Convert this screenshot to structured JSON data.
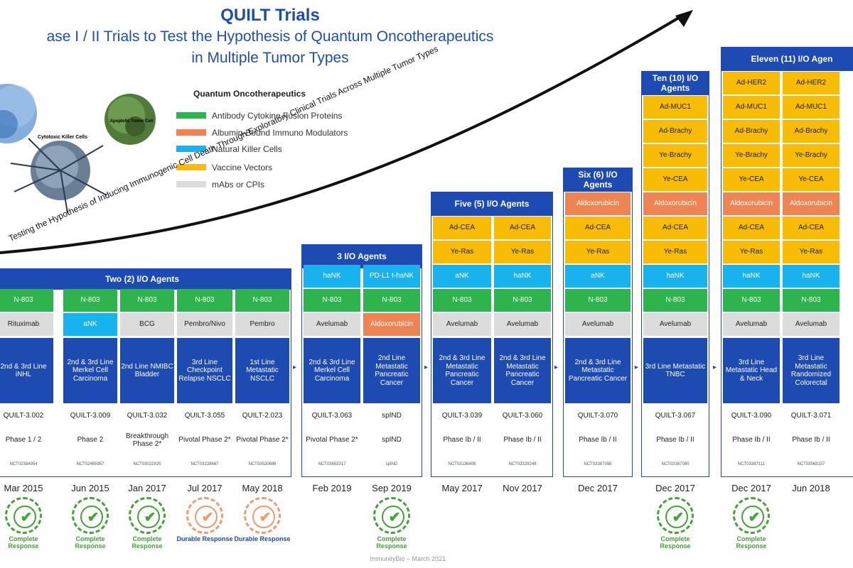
{
  "title": {
    "line1": "QUILT Trials",
    "line2": "ase I / II Trials to Test the Hypothesis of Quantum Oncotherapeutics",
    "line3": "in Multiple Tumor Types"
  },
  "legend": {
    "title": "Quantum Oncotherapeutics",
    "items": [
      {
        "label": "Antibody Cytokine Fusion Proteins",
        "color": "#2eb44c"
      },
      {
        "label": "Albumin-Bound Immuno Modulators",
        "color": "#ee8353"
      },
      {
        "label": "Natural Killer Cells",
        "color": "#18b2ee"
      },
      {
        "label": "Vaccine Vectors",
        "color": "#f8bc05"
      },
      {
        "label": "mAbs or CPIs",
        "color": "#dcdcdc"
      }
    ]
  },
  "arrow_label": "Testing the Hypothesis of Inducing Immunogenic Cell Death Through Exploratory Clinical Trials Across Multiple Tumor Types",
  "cell_images": {
    "left": "",
    "middle": "Cytotoxic Killer Cells",
    "right": "Apoptotic Tumor Cell"
  },
  "groups": {
    "two": "Two (2) I/O Agents",
    "three": "3 I/O Agents",
    "five": "Five (5) I/O Agents",
    "six": "Six (6) I/O Agents",
    "ten": "Ten (10) I/O Agents",
    "eleven": "Eleven (11) I/O Agen"
  },
  "columns": [
    {
      "agents": [
        "N-803",
        "Rituximab"
      ],
      "indication": "2nd & 3rd Line iNHL",
      "trial": "QUILT-3.002",
      "phase": "Phase 1 / 2",
      "nct": "NCT02384954",
      "date": "Mar 2015",
      "response": "Complete Response"
    },
    {
      "agents": [
        "N-803",
        "aNK"
      ],
      "indication": "2nd & 3rd Line Merkel Cell Carcinoma",
      "trial": "QUILT-3.009",
      "phase": "Phase 2",
      "nct": "NCT02465957",
      "date": "Jun 2015",
      "response": "Complete Response"
    },
    {
      "agents": [
        "N-803",
        "BCG"
      ],
      "indication": "2nd Line NMIBC Bladder",
      "trial": "QUILT-3.032",
      "phase": "Breakthrough Phase 2*",
      "nct": "NCT03022825",
      "date": "Jan 2017",
      "response": "Complete Response"
    },
    {
      "agents": [
        "N-803",
        "Pembro/Nivo"
      ],
      "indication": "3rd Line Checkpoint Relapse NSCLC",
      "trial": "QUILT-3.055",
      "phase": "Pivotal Phase 2*",
      "nct": "NCT03228667",
      "date": "Jul 2017",
      "response": "Durable Response"
    },
    {
      "agents": [
        "N-803",
        "Pembro"
      ],
      "indication": "1st Line Metastatic NSCLC",
      "trial": "QUILT-2.023",
      "phase": "Pivotal Phase 2*",
      "nct": "NCT03520686",
      "date": "May 2018",
      "response": "Durable Response"
    },
    {
      "agents": [
        "haNK",
        "N-803",
        "Avelumab"
      ],
      "indication": "2nd & 3rd Line Merkel Cell Carcinoma",
      "trial": "QUILT-3.063",
      "phase": "Pivotal Phase 2*",
      "nct": "NCT03853317",
      "date": "Feb 2019",
      "response": ""
    },
    {
      "agents": [
        "PD-L1 t-haNK",
        "N-803",
        "Aldoxorubicin"
      ],
      "indication": "2nd Line Metastatic Pancreatic Cancer",
      "trial": "spIND",
      "phase": "spIND",
      "nct": "spIND",
      "date": "Sep 2019",
      "response": "Complete Response"
    },
    {
      "agents": [
        "Ad-CEA",
        "Ye-Ras",
        "aNK",
        "N-803",
        "Avelumab"
      ],
      "indication": "2nd & 3rd Line Metastatic Pancreatic Cancer",
      "trial": "QUILT-3.039",
      "phase": "Phase Ib / II",
      "nct": "NCT03136406",
      "date": "May 2017",
      "response": ""
    },
    {
      "agents": [
        "Ad-CEA",
        "Ye-Ras",
        "haNK",
        "N-803",
        "Avelumab"
      ],
      "indication": "2nd & 3rd Line Metastatic Pancreatic Cancer",
      "trial": "QUILT-3.060",
      "phase": "Phase Ib / II",
      "nct": "NCT03329248",
      "date": "Nov 2017",
      "response": ""
    },
    {
      "agents": [
        "Aldoxorubicin",
        "Ad-CEA",
        "Ye-Ras",
        "aNK",
        "N-803",
        "Avelumab"
      ],
      "indication": "2nd & 3rd Line Metastatic Pancreatic Cancer",
      "trial": "QUILT-3.070",
      "phase": "Phase Ib / II",
      "nct": "NCT03387098",
      "date": "Dec 2017",
      "response": ""
    },
    {
      "agents": [
        "Ad-MUC1",
        "Ad-Brachy",
        "Ye-Brachy",
        "Ye-CEA",
        "Aldoxorubicin",
        "Ad-CEA",
        "Ye-Ras",
        "haNK",
        "N-803",
        "Avelumab"
      ],
      "indication": "3rd Line Metastatic TNBC",
      "trial": "QUILT-3.067",
      "phase": "Phase Ib / II",
      "nct": "NCT03387085",
      "date": "Dec 2017",
      "response": "Complete Response"
    },
    {
      "agents": [
        "Ad-HER2",
        "Ad-MUC1",
        "Ad-Brachy",
        "Ye-Brachy",
        "Ye-CEA",
        "Aldoxorubicin",
        "Ad-CEA",
        "Ye-Ras",
        "haNK",
        "N-803",
        "Avelumab"
      ],
      "indication": "3rd Line Metastatic Head & Neck",
      "trial": "QUILT-3.090",
      "phase": "Phase Ib / II",
      "nct": "NCT03387111",
      "date": "Dec 2017",
      "response": "Complete Response"
    },
    {
      "agents": [
        "Ad-HER2",
        "Ad-MUC1",
        "Ad-Brachy",
        "Ye-Brachy",
        "Ye-CEA",
        "Aldoxorubicin",
        "Ad-CEA",
        "Ye-Ras",
        "haNK",
        "N-803",
        "Avelumab"
      ],
      "indication": "3rd Line Metastatic Randomized Colorectal",
      "trial": "QUILT-3.071",
      "phase": "Phase Ib / II",
      "nct": "NCT03563157",
      "date": "Jun 2018",
      "response": ""
    }
  ],
  "footer": "ImmunityBio – March 2021"
}
